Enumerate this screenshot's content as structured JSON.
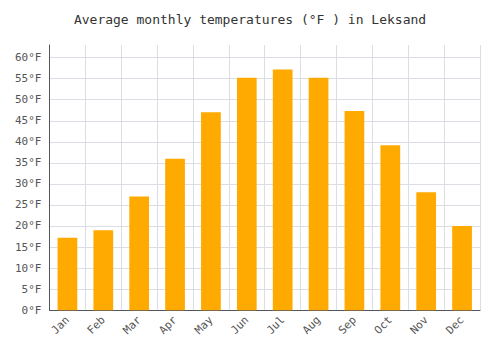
{
  "chart_data": {
    "type": "bar",
    "title": "Average monthly temperatures (°F ) in Leksand",
    "categories": [
      "Jan",
      "Feb",
      "Mar",
      "Apr",
      "May",
      "Jun",
      "Jul",
      "Aug",
      "Sep",
      "Oct",
      "Nov",
      "Dec"
    ],
    "values": [
      17.2,
      19.0,
      27.0,
      36.0,
      47.0,
      55.2,
      57.2,
      55.2,
      47.3,
      39.2,
      28.0,
      20.0
    ],
    "color": "#FFAA00",
    "ylim": [
      0,
      63
    ],
    "yticks": [
      {
        "value": 0,
        "label": "0°F"
      },
      {
        "value": 5,
        "label": "5°F"
      },
      {
        "value": 10,
        "label": "10°F"
      },
      {
        "value": 15,
        "label": "15°F"
      },
      {
        "value": 20,
        "label": "20°F"
      },
      {
        "value": 25,
        "label": "25°F"
      },
      {
        "value": 30,
        "label": "30°F"
      },
      {
        "value": 35,
        "label": "35°F"
      },
      {
        "value": 40,
        "label": "40°F"
      },
      {
        "value": 45,
        "label": "45°F"
      },
      {
        "value": 50,
        "label": "50°F"
      },
      {
        "value": 55,
        "label": "55°F"
      },
      {
        "value": 60,
        "label": "60°F"
      }
    ],
    "grid": true
  }
}
